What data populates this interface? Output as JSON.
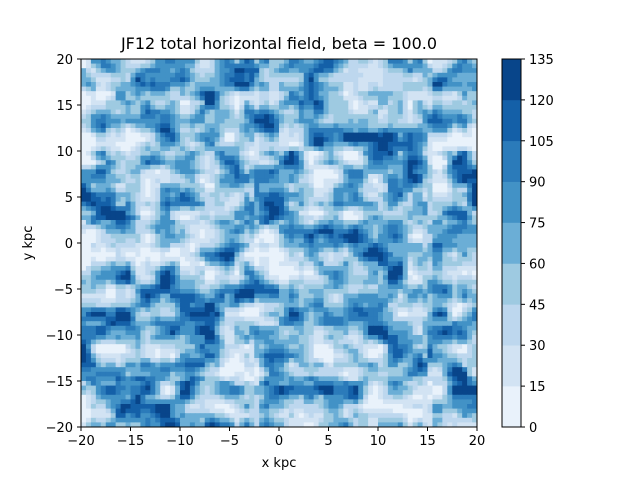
{
  "chart_data": {
    "type": "heatmap",
    "subtype": "filled-contour",
    "title": "JF12 total horizontal field, beta = 100.0",
    "xlabel": "x kpc",
    "ylabel": "y kpc",
    "xlim": [
      -20,
      20
    ],
    "ylim": [
      -20,
      20
    ],
    "x_ticks": [
      -20,
      -15,
      -10,
      -5,
      0,
      5,
      10,
      15,
      20
    ],
    "y_ticks": [
      -20,
      -15,
      -10,
      -5,
      0,
      5,
      10,
      15,
      20
    ],
    "x_tick_labels": [
      "−20",
      "−15",
      "−10",
      "−5",
      "0",
      "5",
      "10",
      "15",
      "20"
    ],
    "y_tick_labels": [
      "−20",
      "−15",
      "−10",
      "−5",
      "0",
      "5",
      "10",
      "15",
      "20"
    ],
    "colormap": "Blues",
    "colorbar": {
      "levels": [
        0,
        15,
        30,
        45,
        60,
        75,
        90,
        105,
        120,
        135
      ],
      "labels": [
        "0",
        "15",
        "30",
        "45",
        "60",
        "75",
        "90",
        "105",
        "120",
        "135"
      ],
      "colors": [
        "#e9f2fb",
        "#d2e3f3",
        "#bdd7ee",
        "#9ecae1",
        "#6baed6",
        "#4292c6",
        "#2b7bba",
        "#1460a8",
        "#08458a"
      ]
    },
    "grid": false,
    "value_range_estimate": [
      0,
      135
    ],
    "grid_x": [
      -20,
      -15,
      -10,
      -5,
      0,
      5,
      10,
      15,
      20
    ],
    "grid_y": [
      20,
      15,
      10,
      5,
      0,
      -5,
      -10,
      -15,
      -20
    ],
    "z_sample_estimate": [
      [
        45,
        60,
        30,
        45,
        30,
        45,
        30,
        60,
        90
      ],
      [
        60,
        45,
        75,
        30,
        60,
        45,
        45,
        30,
        75
      ],
      [
        75,
        60,
        45,
        60,
        45,
        30,
        60,
        75,
        60
      ],
      [
        45,
        30,
        60,
        75,
        45,
        75,
        45,
        45,
        30
      ],
      [
        60,
        45,
        30,
        90,
        30,
        45,
        60,
        75,
        45
      ],
      [
        45,
        75,
        60,
        45,
        60,
        30,
        45,
        60,
        75
      ],
      [
        60,
        45,
        75,
        60,
        45,
        60,
        75,
        45,
        60
      ],
      [
        45,
        60,
        30,
        45,
        75,
        45,
        60,
        75,
        45
      ],
      [
        60,
        90,
        45,
        60,
        45,
        60,
        45,
        60,
        75
      ]
    ]
  }
}
